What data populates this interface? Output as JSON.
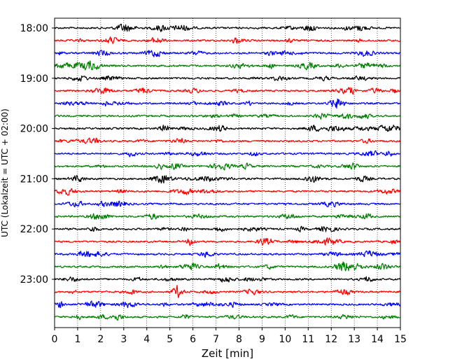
{
  "chart_data": {
    "type": "line",
    "title": "",
    "xlabel": "Zeit  [min]",
    "ylabel": "UTC (Lokalzeit = UTC + 02:00)",
    "xlim": [
      0,
      15
    ],
    "x_ticks": [
      "0",
      "1",
      "2",
      "3",
      "4",
      "5",
      "6",
      "7",
      "8",
      "9",
      "10",
      "11",
      "12",
      "13",
      "14",
      "15"
    ],
    "y_ticks": [
      "18:00",
      "19:00",
      "20:00",
      "21:00",
      "22:00",
      "23:00"
    ],
    "grid": "vertical-dotted",
    "trace_minutes": 15,
    "traces_per_hour": 4,
    "trace_colors": [
      "#000000",
      "#ff0000",
      "#0000ff",
      "#007f00"
    ],
    "rows": [
      {
        "start": "18:00",
        "color": "#000000"
      },
      {
        "start": "18:15",
        "color": "#ff0000"
      },
      {
        "start": "18:30",
        "color": "#0000ff"
      },
      {
        "start": "18:45",
        "color": "#007f00"
      },
      {
        "start": "19:00",
        "color": "#000000"
      },
      {
        "start": "19:15",
        "color": "#ff0000"
      },
      {
        "start": "19:30",
        "color": "#0000ff"
      },
      {
        "start": "19:45",
        "color": "#007f00"
      },
      {
        "start": "20:00",
        "color": "#000000"
      },
      {
        "start": "20:15",
        "color": "#ff0000"
      },
      {
        "start": "20:30",
        "color": "#0000ff"
      },
      {
        "start": "20:45",
        "color": "#007f00"
      },
      {
        "start": "21:00",
        "color": "#000000"
      },
      {
        "start": "21:15",
        "color": "#ff0000"
      },
      {
        "start": "21:30",
        "color": "#0000ff"
      },
      {
        "start": "21:45",
        "color": "#007f00"
      },
      {
        "start": "22:00",
        "color": "#000000"
      },
      {
        "start": "22:15",
        "color": "#ff0000"
      },
      {
        "start": "22:30",
        "color": "#0000ff"
      },
      {
        "start": "22:45",
        "color": "#007f00"
      },
      {
        "start": "23:00",
        "color": "#000000"
      },
      {
        "start": "23:15",
        "color": "#ff0000"
      },
      {
        "start": "23:30",
        "color": "#0000ff"
      },
      {
        "start": "23:45",
        "color": "#007f00"
      }
    ]
  }
}
